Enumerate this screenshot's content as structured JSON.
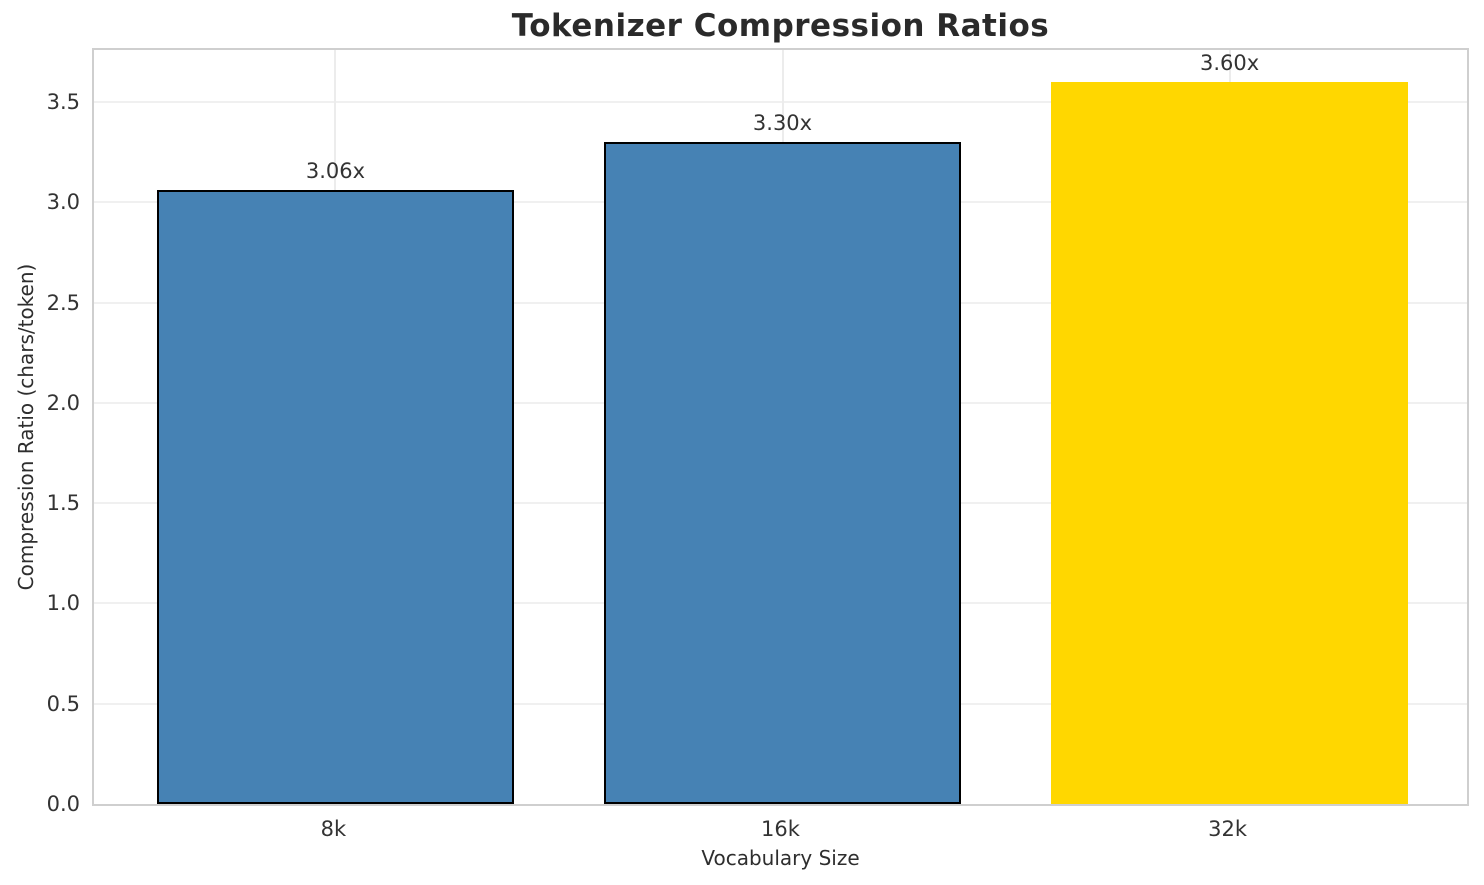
{
  "chart_data": {
    "type": "bar",
    "title": "Tokenizer Compression Ratios",
    "xlabel": "Vocabulary Size",
    "ylabel": "Compression Ratio (chars/token)",
    "categories": [
      "8k",
      "16k",
      "32k"
    ],
    "values": [
      3.06,
      3.3,
      3.6
    ],
    "value_labels": [
      "3.06x",
      "3.30x",
      "3.60x"
    ],
    "bar_colors": [
      "#4682B4",
      "#4682B4",
      "#FFD700"
    ],
    "bar_edge_colors": [
      "#000000",
      "#000000",
      "none"
    ],
    "ytick_values": [
      0.0,
      0.5,
      1.0,
      1.5,
      2.0,
      2.5,
      3.0,
      3.5
    ],
    "ytick_labels": [
      "0.0",
      "0.5",
      "1.0",
      "1.5",
      "2.0",
      "2.5",
      "3.0",
      "3.5"
    ],
    "ylim": [
      0,
      3.78
    ],
    "xlim": [
      -0.54,
      2.54
    ],
    "bar_half_width": 0.4,
    "grid": true,
    "legend_position": "none",
    "colors": {
      "background": "#ffffff",
      "grid": "#f0f0f0",
      "spine": "#cfcfcf",
      "text": "#333333",
      "title": "#2a2a2a"
    }
  }
}
